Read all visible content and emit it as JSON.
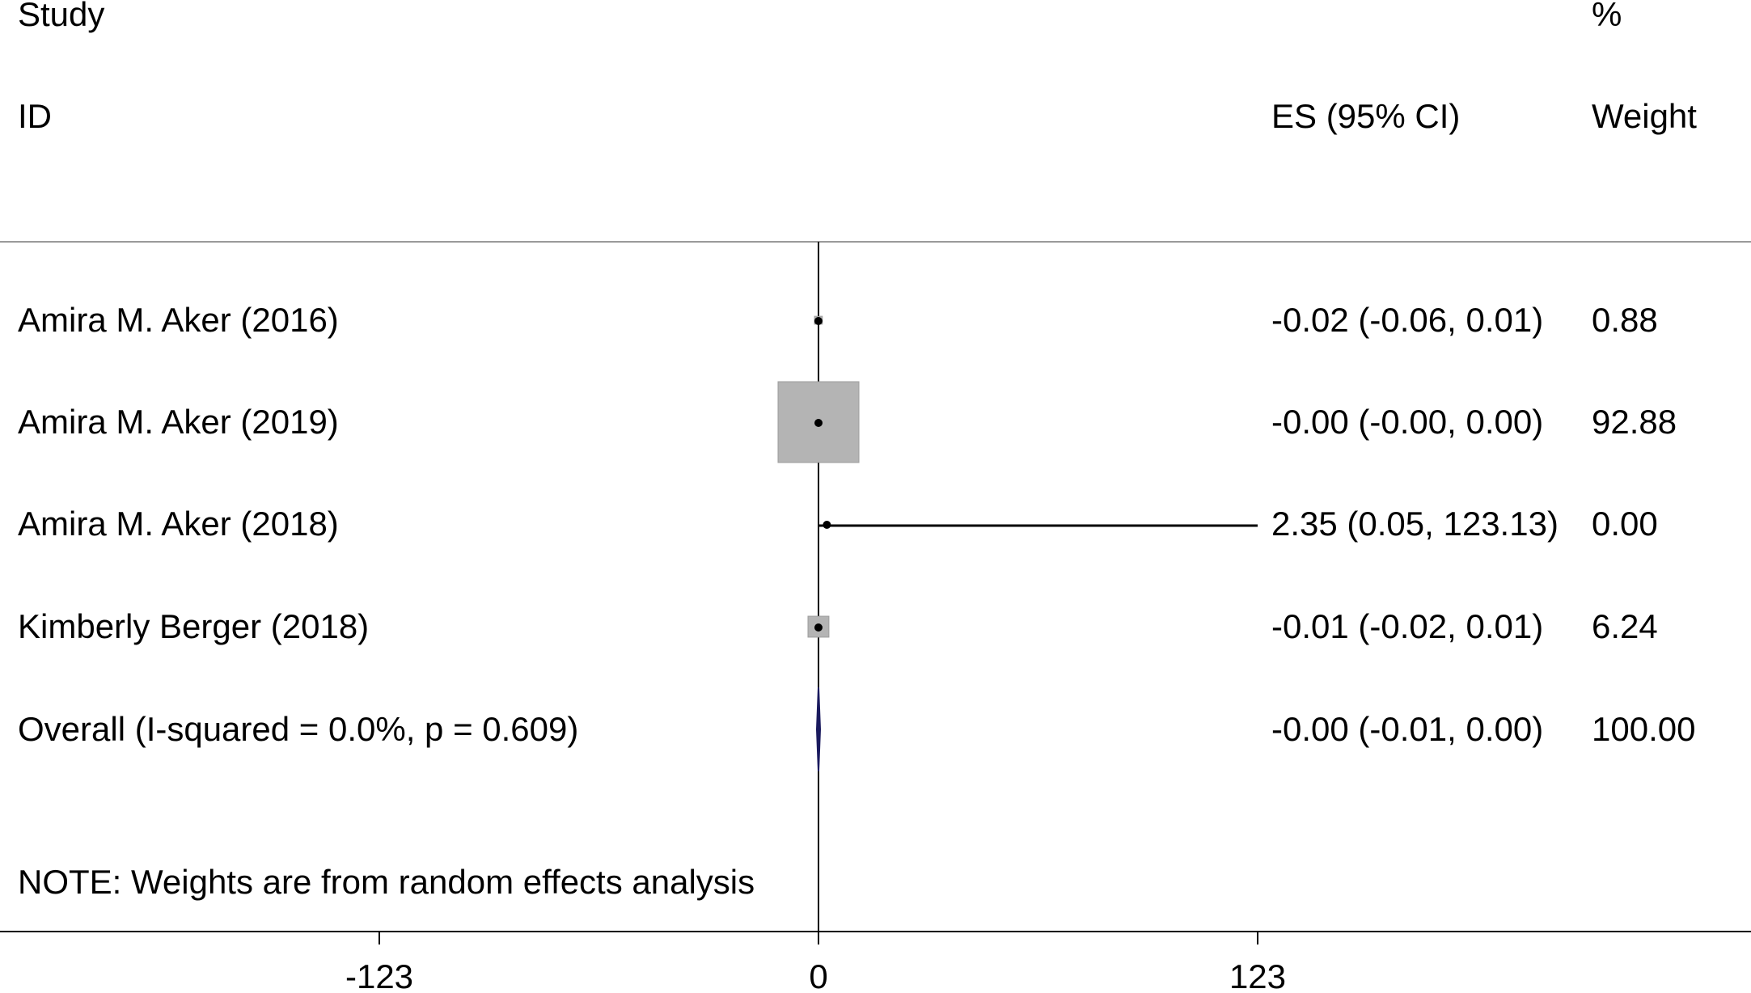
{
  "chart_data": {
    "type": "forest",
    "headers": {
      "study_line1": "Study",
      "study_line2": "ID",
      "es_header": "ES (95% CI)",
      "weight_line1": "%",
      "weight_line2": "Weight"
    },
    "studies": [
      {
        "label": "Amira M. Aker (2016)",
        "es": -0.02,
        "lower": -0.06,
        "upper": 0.01,
        "es_text": "-0.02 (-0.06, 0.01)",
        "weight": 0.88,
        "weight_text": "0.88"
      },
      {
        "label": "Amira M. Aker (2019)",
        "es": -0.0,
        "lower": -0.0,
        "upper": 0.0,
        "es_text": "-0.00 (-0.00, 0.00)",
        "weight": 92.88,
        "weight_text": "92.88"
      },
      {
        "label": "Amira M. Aker (2018)",
        "es": 2.35,
        "lower": 0.05,
        "upper": 123.13,
        "es_text": "2.35 (0.05, 123.13)",
        "weight": 0.0,
        "weight_text": "0.00"
      },
      {
        "label": "Kimberly Berger (2018)",
        "es": -0.01,
        "lower": -0.02,
        "upper": 0.01,
        "es_text": "-0.01 (-0.02, 0.01)",
        "weight": 6.24,
        "weight_text": "6.24"
      }
    ],
    "overall": {
      "label": "Overall  (I-squared = 0.0%, p = 0.609)",
      "es": -0.0,
      "lower": -0.01,
      "upper": 0.0,
      "es_text": "-0.00 (-0.01, 0.00)",
      "weight_text": "100.00"
    },
    "note": "NOTE: Weights are from random effects analysis",
    "x_ticks": [
      -123,
      0,
      123
    ],
    "x_tick_labels": [
      "-123",
      "0",
      "123"
    ],
    "xlim": [
      -123,
      123
    ],
    "colors": {
      "box": "#b4b4b4",
      "line": "#000000",
      "overall": "#1a1a5e",
      "separator": "#9a9a9a"
    }
  }
}
